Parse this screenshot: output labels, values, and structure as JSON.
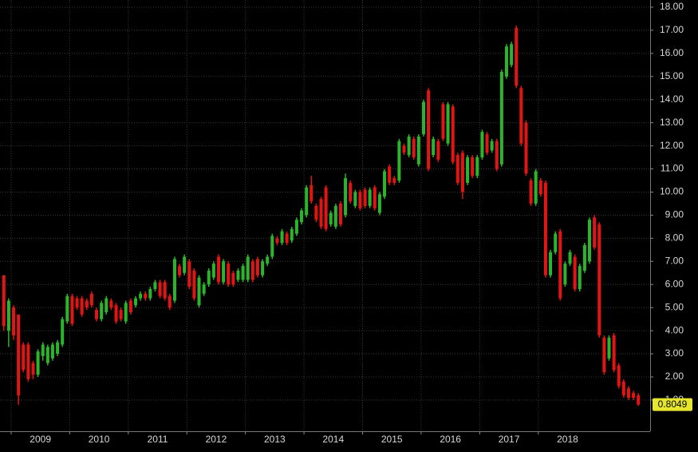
{
  "chart_data": {
    "type": "candlestick",
    "up_color": "#2cb52c",
    "down_color": "#e21414",
    "grid": true,
    "last_value_color": "#e6e62e",
    "xlim": [
      2008.81,
      2019.91
    ],
    "ylim": [
      -0.35,
      18.31
    ],
    "xticks": [
      2009,
      2010,
      2011,
      2012,
      2013,
      2014,
      2015,
      2016,
      2017,
      2018
    ],
    "yticks": [
      {
        "value": 1,
        "label": "1.00"
      },
      {
        "value": 2,
        "label": "2.00"
      },
      {
        "value": 3,
        "label": "3.00"
      },
      {
        "value": 4,
        "label": "4.00"
      },
      {
        "value": 5,
        "label": "5.00"
      },
      {
        "value": 6,
        "label": "6.00"
      },
      {
        "value": 7,
        "label": "7.00"
      },
      {
        "value": 8,
        "label": "8.00"
      },
      {
        "value": 9,
        "label": "9.00"
      },
      {
        "value": 10,
        "label": "10.00"
      },
      {
        "value": 11,
        "label": "11.00"
      },
      {
        "value": 12,
        "label": "12.00"
      },
      {
        "value": 13,
        "label": "13.00"
      },
      {
        "value": 14,
        "label": "14.00"
      },
      {
        "value": 15,
        "label": "15.00"
      },
      {
        "value": 16,
        "label": "16.00"
      },
      {
        "value": 17,
        "label": "17.00"
      },
      {
        "value": 18,
        "label": "18.00"
      }
    ],
    "x": [
      2008.875,
      2008.958,
      2009.042,
      2009.125,
      2009.208,
      2009.292,
      2009.375,
      2009.458,
      2009.542,
      2009.625,
      2009.708,
      2009.792,
      2009.875,
      2009.958,
      2010.042,
      2010.125,
      2010.208,
      2010.292,
      2010.375,
      2010.458,
      2010.542,
      2010.625,
      2010.708,
      2010.792,
      2010.875,
      2010.958,
      2011.042,
      2011.125,
      2011.208,
      2011.292,
      2011.375,
      2011.458,
      2011.542,
      2011.625,
      2011.708,
      2011.792,
      2011.875,
      2011.958,
      2012.042,
      2012.125,
      2012.208,
      2012.292,
      2012.375,
      2012.458,
      2012.542,
      2012.625,
      2012.708,
      2012.792,
      2012.875,
      2012.958,
      2013.042,
      2013.125,
      2013.208,
      2013.292,
      2013.375,
      2013.458,
      2013.542,
      2013.625,
      2013.708,
      2013.792,
      2013.875,
      2013.958,
      2014.042,
      2014.125,
      2014.208,
      2014.292,
      2014.375,
      2014.458,
      2014.542,
      2014.625,
      2014.708,
      2014.792,
      2014.875,
      2014.958,
      2015.042,
      2015.125,
      2015.208,
      2015.292,
      2015.375,
      2015.458,
      2015.542,
      2015.625,
      2015.708,
      2015.792,
      2015.875,
      2015.958,
      2016.042,
      2016.125,
      2016.208,
      2016.292,
      2016.375,
      2016.458,
      2016.542,
      2016.625,
      2016.708,
      2016.792,
      2016.875,
      2016.958,
      2017.042,
      2017.125,
      2017.208,
      2017.292,
      2017.375,
      2017.458,
      2017.542,
      2017.625,
      2017.708,
      2017.792,
      2017.875,
      2017.958,
      2018.042,
      2018.125,
      2018.208,
      2018.292,
      2018.375,
      2018.458,
      2018.542,
      2018.625,
      2018.708,
      2018.792,
      2018.875,
      2018.958,
      2019.042,
      2019.125,
      2019.208,
      2019.292,
      2019.375,
      2019.458,
      2019.542,
      2019.625,
      2019.708
    ],
    "open": [
      6.4,
      4.0,
      5.0,
      4.7,
      3.4,
      3.4,
      2.6,
      2.1,
      2.9,
      2.6,
      2.8,
      3.0,
      3.4,
      4.4,
      5.5,
      5.4,
      5.4,
      5.3,
      5.6,
      4.9,
      4.5,
      4.8,
      5.3,
      5.1,
      4.9,
      4.4,
      5.3,
      5.1,
      5.4,
      5.6,
      5.4,
      5.8,
      6.1,
      6.1,
      5.5,
      5.3,
      6.8,
      6.5,
      7.0,
      6.6,
      5.1,
      5.6,
      6.0,
      6.3,
      7.2,
      6.1,
      6.9,
      6.5,
      6.2,
      6.2,
      6.2,
      7.0,
      7.1,
      6.4,
      6.9,
      7.2,
      8.0,
      7.8,
      8.2,
      7.9,
      8.2,
      8.7,
      9.0,
      10.3,
      9.4,
      9.7,
      10.2,
      8.6,
      8.5,
      9.5,
      9.0,
      10.4,
      9.4,
      10.0,
      10.1,
      9.4,
      10.2,
      9.1,
      9.8,
      11.1,
      10.6,
      10.5,
      12.0,
      11.6,
      12.3,
      11.2,
      12.5,
      14.4,
      11.6,
      12.2,
      13.8,
      12.1,
      13.7,
      11.6,
      11.7,
      10.4,
      11.5,
      10.7,
      11.5,
      12.5,
      11.8,
      12.2,
      11.2,
      15.0,
      15.5,
      17.1,
      14.5,
      13.0,
      10.5,
      9.5,
      10.5,
      10.4,
      6.4,
      7.4,
      8.3,
      6.0,
      6.9,
      7.2,
      5.8,
      6.6,
      7.0,
      8.9,
      8.6,
      3.7,
      2.8,
      3.8,
      2.5,
      1.8,
      1.5,
      1.3,
      1.2
    ],
    "high": [
      6.4,
      5.4,
      5.1,
      4.7,
      3.5,
      3.5,
      2.7,
      3.2,
      3.5,
      3.4,
      3.5,
      3.6,
      4.6,
      5.6,
      5.6,
      5.5,
      5.5,
      5.4,
      5.7,
      5.0,
      5.3,
      5.5,
      5.4,
      5.2,
      5.0,
      5.3,
      5.4,
      5.5,
      5.7,
      5.7,
      5.9,
      6.2,
      6.2,
      6.2,
      5.6,
      7.2,
      6.9,
      7.3,
      7.1,
      6.7,
      6.4,
      6.1,
      6.7,
      7.0,
      7.3,
      7.1,
      7.0,
      6.6,
      6.7,
      6.9,
      7.3,
      7.1,
      7.2,
      7.1,
      7.3,
      8.2,
      8.1,
      8.4,
      8.3,
      8.5,
      8.9,
      9.3,
      10.3,
      10.7,
      9.5,
      9.8,
      10.3,
      9.2,
      9.5,
      9.6,
      10.8,
      10.5,
      10.1,
      10.1,
      10.2,
      10.2,
      10.3,
      10.0,
      11.0,
      11.2,
      10.7,
      12.3,
      12.1,
      12.5,
      12.4,
      12.5,
      14.0,
      14.5,
      12.4,
      12.3,
      13.9,
      13.9,
      13.8,
      11.7,
      11.8,
      11.6,
      11.6,
      11.6,
      12.7,
      12.6,
      12.3,
      12.3,
      15.3,
      16.4,
      16.5,
      17.2,
      14.6,
      13.1,
      10.6,
      11.0,
      10.6,
      10.5,
      7.5,
      8.3,
      8.4,
      7.0,
      7.5,
      7.3,
      6.9,
      7.8,
      8.9,
      9.0,
      8.7,
      3.8,
      3.8,
      3.9,
      2.6,
      1.9,
      1.6,
      1.4,
      1.3
    ],
    "low": [
      4.0,
      3.3,
      3.6,
      0.8,
      2.2,
      1.8,
      1.9,
      2.0,
      2.7,
      2.5,
      2.7,
      2.9,
      3.3,
      4.3,
      4.2,
      4.9,
      4.6,
      4.9,
      5.0,
      4.4,
      4.4,
      4.7,
      4.9,
      4.3,
      4.4,
      4.3,
      4.7,
      5.0,
      5.3,
      5.3,
      5.3,
      5.7,
      5.4,
      5.3,
      4.9,
      5.2,
      6.3,
      6.4,
      5.8,
      5.3,
      5.0,
      5.5,
      5.9,
      6.2,
      6.0,
      6.0,
      5.9,
      5.9,
      6.1,
      6.1,
      6.1,
      6.1,
      6.3,
      6.3,
      6.8,
      7.1,
      7.7,
      7.7,
      7.7,
      7.8,
      8.1,
      8.6,
      8.9,
      9.5,
      8.7,
      8.4,
      8.3,
      8.5,
      8.4,
      8.5,
      8.9,
      9.5,
      9.3,
      9.2,
      9.3,
      9.3,
      9.2,
      9.0,
      9.7,
      10.3,
      10.3,
      10.4,
      11.6,
      11.5,
      11.4,
      11.1,
      12.4,
      10.9,
      11.5,
      11.3,
      12.2,
      12.0,
      11.2,
      10.3,
      9.7,
      10.3,
      10.6,
      10.6,
      11.4,
      11.6,
      11.7,
      10.9,
      11.1,
      14.9,
      15.4,
      14.5,
      12.0,
      10.7,
      9.4,
      9.4,
      9.8,
      6.3,
      6.3,
      7.3,
      5.3,
      5.9,
      6.8,
      5.7,
      5.7,
      6.5,
      6.9,
      7.5,
      3.7,
      2.1,
      2.7,
      2.2,
      1.5,
      1.1,
      1.0,
      1.0,
      0.75
    ],
    "close": [
      4.2,
      5.3,
      3.8,
      1.2,
      2.3,
      1.9,
      2.1,
      3.1,
      3.4,
      3.3,
      3.4,
      3.5,
      4.5,
      5.5,
      4.3,
      5.0,
      4.7,
      5.0,
      5.1,
      4.5,
      5.2,
      5.4,
      5.0,
      4.4,
      4.5,
      5.2,
      4.8,
      5.4,
      5.6,
      5.4,
      5.8,
      6.1,
      5.5,
      5.4,
      5.0,
      7.1,
      6.4,
      7.2,
      5.9,
      5.4,
      6.3,
      6.0,
      6.6,
      6.9,
      6.1,
      7.0,
      6.0,
      6.0,
      6.6,
      6.8,
      7.2,
      6.2,
      6.4,
      7.0,
      7.2,
      8.1,
      7.8,
      8.3,
      7.8,
      8.4,
      8.8,
      9.2,
      10.2,
      9.6,
      8.8,
      8.5,
      8.4,
      9.1,
      9.4,
      8.6,
      10.6,
      9.6,
      10.0,
      9.3,
      9.4,
      10.1,
      9.3,
      9.9,
      10.9,
      10.4,
      10.4,
      12.2,
      11.7,
      12.4,
      11.5,
      12.4,
      13.9,
      11.0,
      12.3,
      11.4,
      12.3,
      13.8,
      11.3,
      10.4,
      10.0,
      11.5,
      10.7,
      11.5,
      12.6,
      11.7,
      12.2,
      11.0,
      15.2,
      16.3,
      16.4,
      14.6,
      12.1,
      10.8,
      9.5,
      10.9,
      9.9,
      6.4,
      7.4,
      8.2,
      5.4,
      6.9,
      7.4,
      5.8,
      6.8,
      7.7,
      8.8,
      7.6,
      3.8,
      2.2,
      3.7,
      2.3,
      1.6,
      1.2,
      1.1,
      1.1,
      0.8049
    ]
  }
}
